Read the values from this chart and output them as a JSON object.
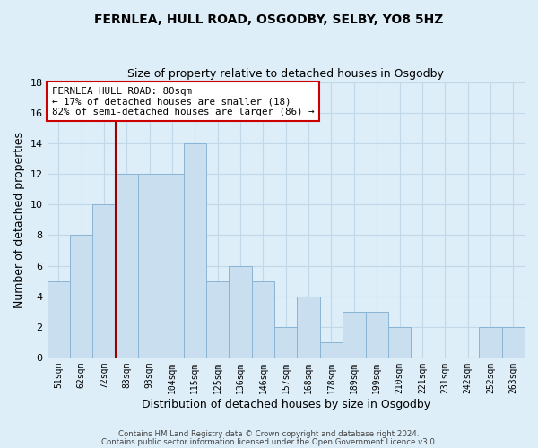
{
  "title": "FERNLEA, HULL ROAD, OSGODBY, SELBY, YO8 5HZ",
  "subtitle": "Size of property relative to detached houses in Osgodby",
  "xlabel": "Distribution of detached houses by size in Osgodby",
  "ylabel": "Number of detached properties",
  "bar_color": "#c9dff0",
  "bar_edge_color": "#8ab4d4",
  "background_color": "#ddeef8",
  "plot_bg_color": "#ddeef8",
  "grid_color": "#c0d8e8",
  "categories": [
    "51sqm",
    "62sqm",
    "72sqm",
    "83sqm",
    "93sqm",
    "104sqm",
    "115sqm",
    "125sqm",
    "136sqm",
    "146sqm",
    "157sqm",
    "168sqm",
    "178sqm",
    "189sqm",
    "199sqm",
    "210sqm",
    "221sqm",
    "231sqm",
    "242sqm",
    "252sqm",
    "263sqm"
  ],
  "values": [
    5,
    8,
    10,
    12,
    12,
    12,
    14,
    5,
    6,
    5,
    2,
    4,
    1,
    3,
    3,
    2,
    0,
    0,
    0,
    2,
    2
  ],
  "ylim": [
    0,
    18
  ],
  "yticks": [
    0,
    2,
    4,
    6,
    8,
    10,
    12,
    14,
    16,
    18
  ],
  "property_line_x": 2.5,
  "annotation_line1": "FERNLEA HULL ROAD: 80sqm",
  "annotation_line2": "← 17% of detached houses are smaller (18)",
  "annotation_line3": "82% of semi-detached houses are larger (86) →",
  "footnote1": "Contains HM Land Registry data © Crown copyright and database right 2024.",
  "footnote2": "Contains public sector information licensed under the Open Government Licence v3.0.",
  "line_color": "#990000",
  "annotation_box_facecolor": "#ffffff",
  "annotation_box_edgecolor": "#cc0000"
}
